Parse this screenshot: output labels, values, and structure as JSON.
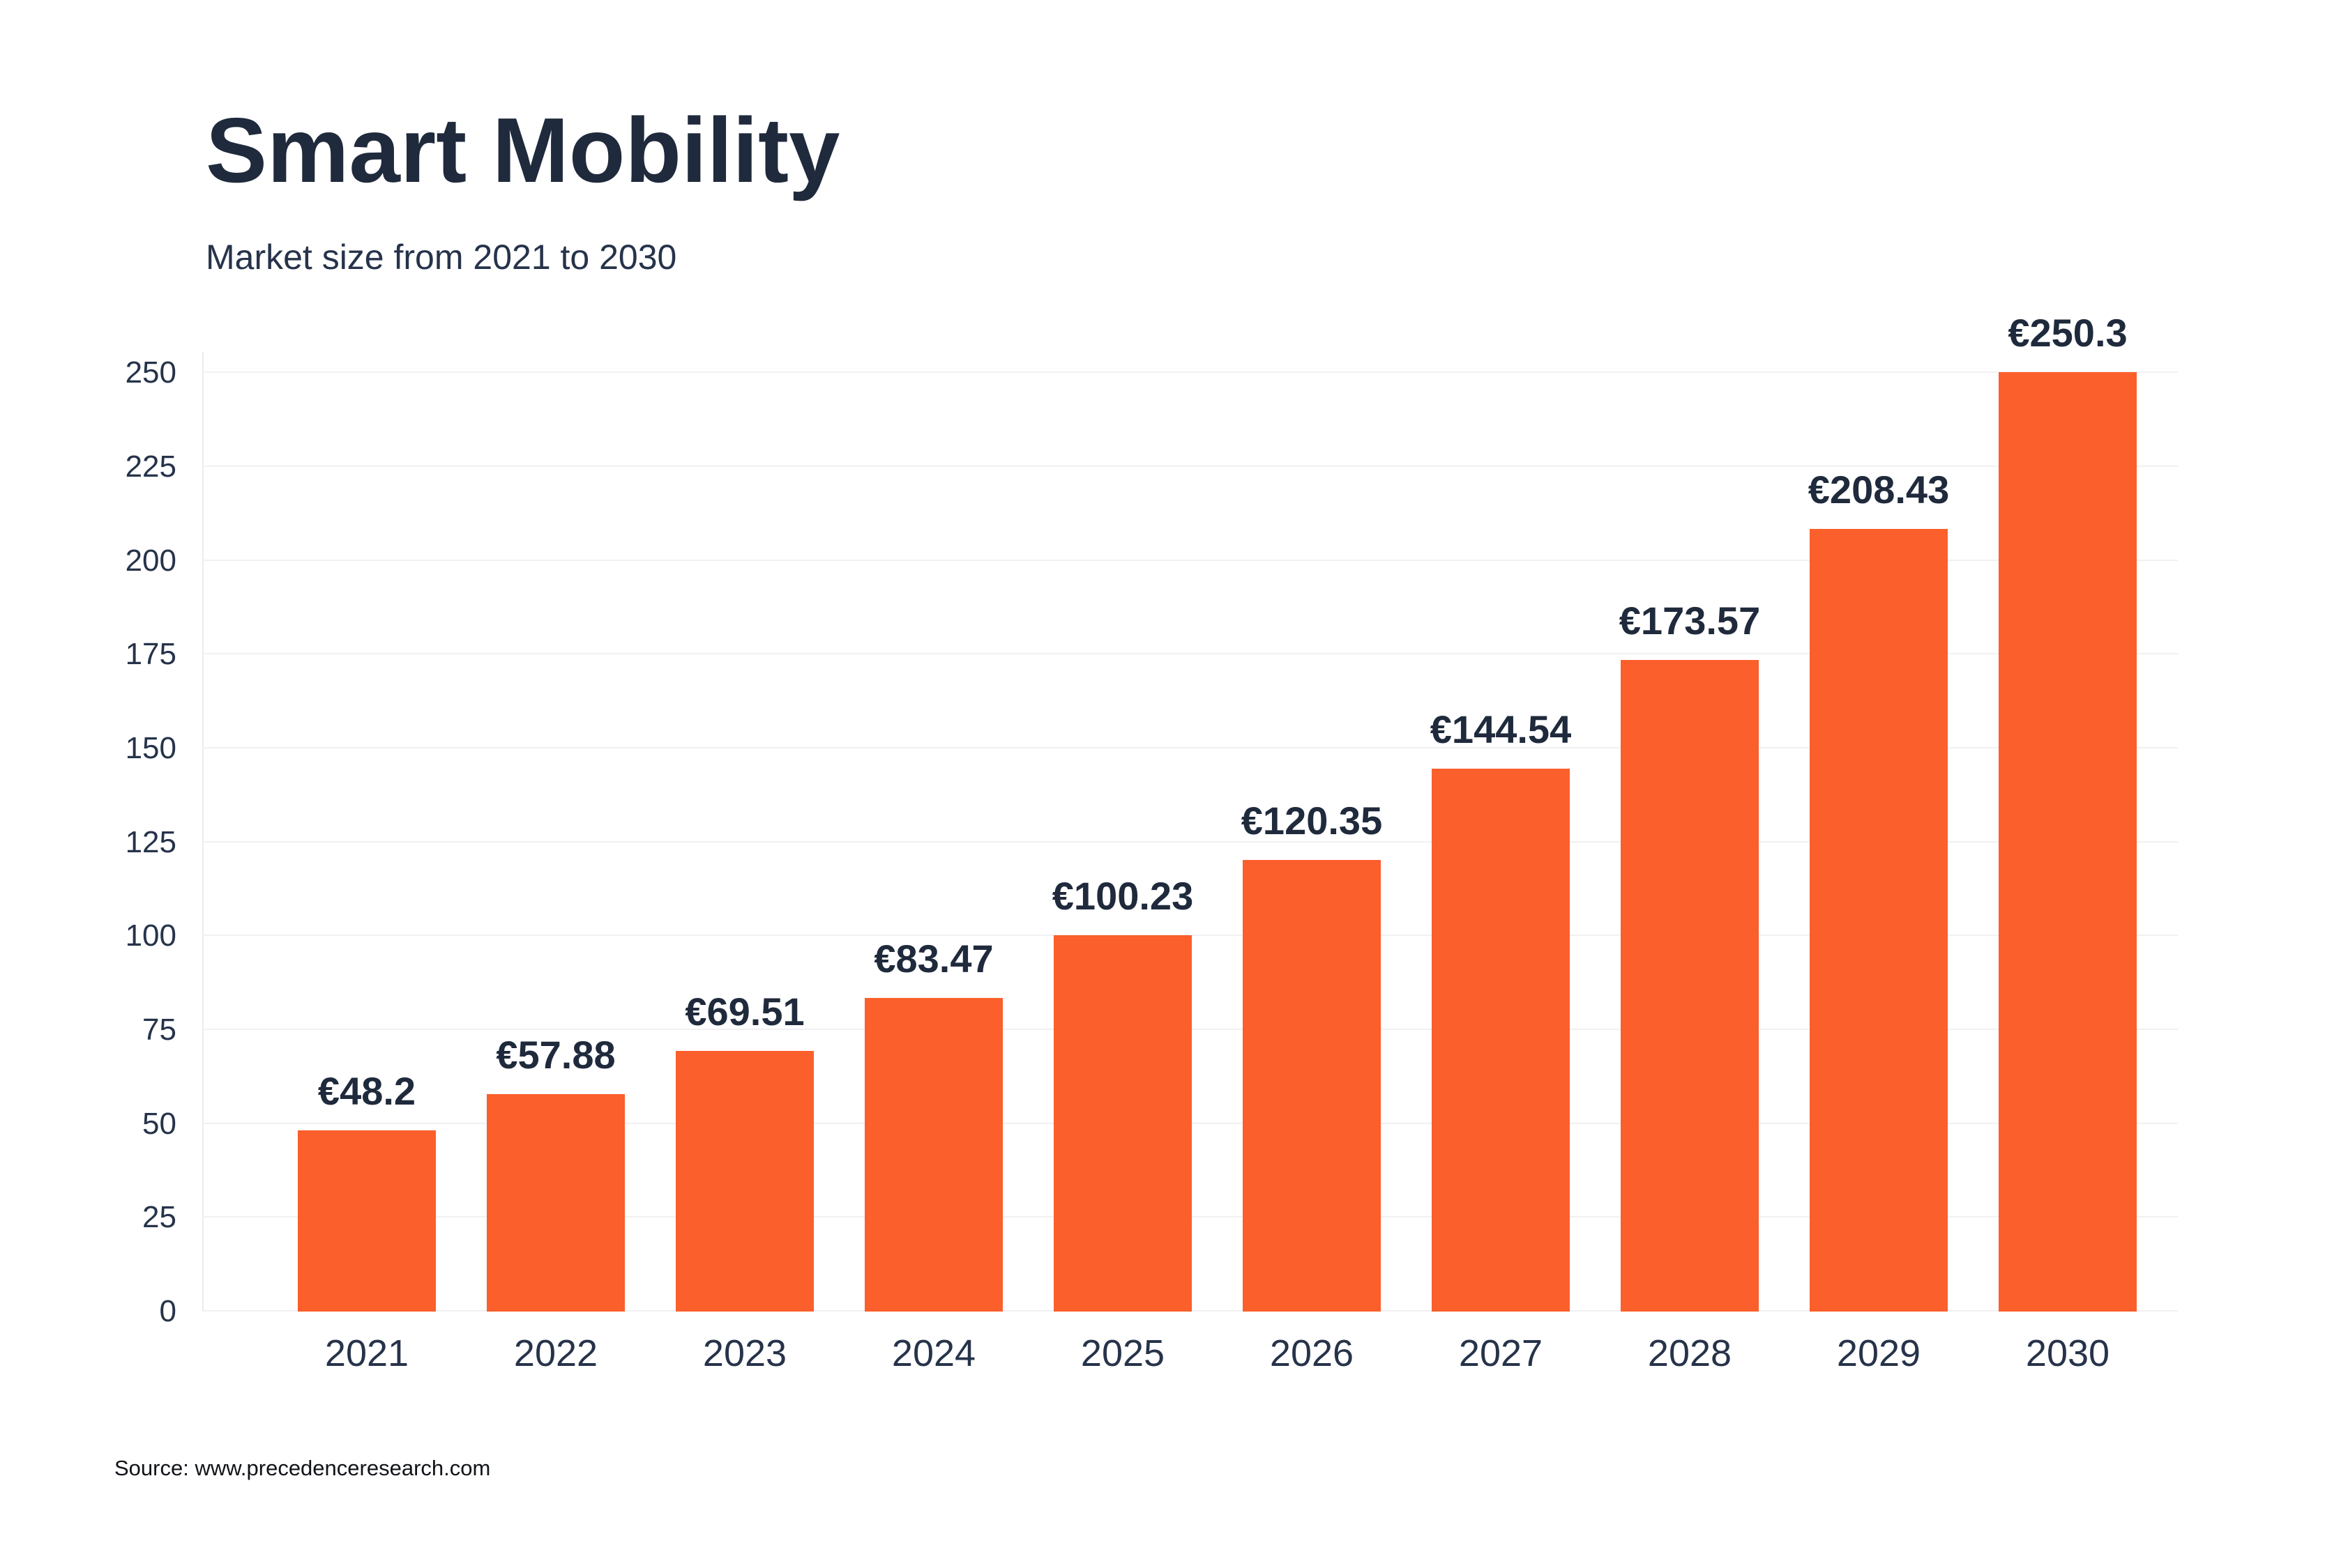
{
  "header": {
    "title": "Smart Mobility",
    "subtitle": "Market size from 2021 to 2030"
  },
  "source": {
    "text": "Source: www.precedenceresearch.com"
  },
  "colors": {
    "bar": "#fb5f2b",
    "title_text": "#1f2a3c",
    "tick_text": "#26334a",
    "gridline": "#f1f1f3",
    "axis_line": "#ebebee",
    "background": "#ffffff"
  },
  "chart_data": {
    "type": "bar",
    "title": "Smart Mobility",
    "subtitle": "Market size from 2021 to 2030",
    "categories": [
      "2021",
      "2022",
      "2023",
      "2024",
      "2025",
      "2026",
      "2027",
      "2028",
      "2029",
      "2030"
    ],
    "values": [
      48.2,
      57.88,
      69.51,
      83.47,
      100.23,
      120.35,
      144.54,
      173.57,
      208.43,
      250.3
    ],
    "value_labels": [
      "€48.2",
      "€57.88",
      "€69.51",
      "€83.47",
      "€100.23",
      "€120.35",
      "€144.54",
      "€173.57",
      "€208.43",
      "€250.3"
    ],
    "currency_prefix": "€",
    "xlabel": "",
    "ylabel": "",
    "ylim": [
      0,
      255.6
    ],
    "yticks": [
      0,
      25,
      50,
      75,
      100,
      125,
      150,
      175,
      200,
      225,
      250
    ],
    "grid": "horizontal",
    "legend": "none"
  }
}
